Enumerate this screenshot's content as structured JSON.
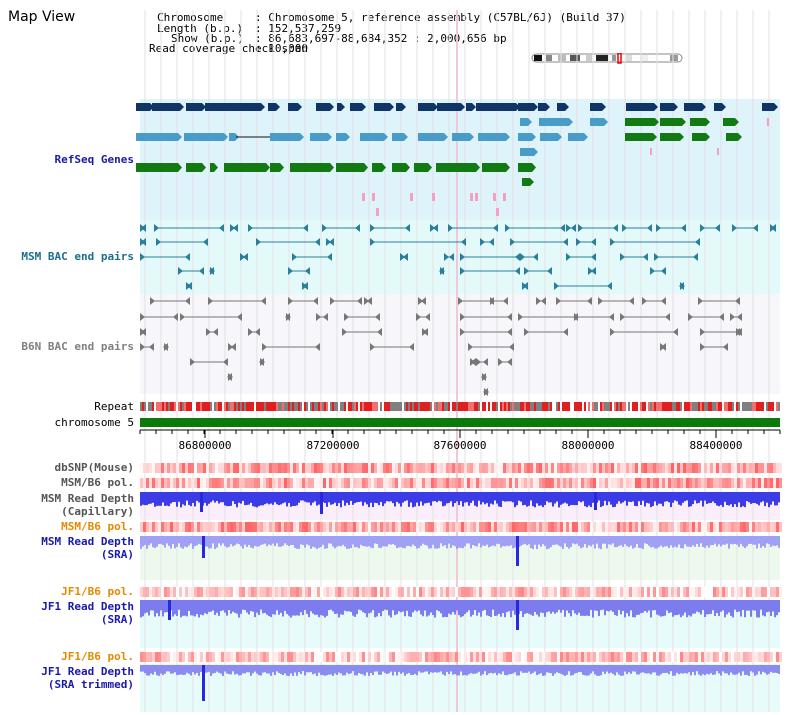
{
  "title": "Map View",
  "info": {
    "chromosome_key": "Chromosome",
    "chromosome_val": ": Chromosome 5, reference assembly (C57BL/6J) (Build 37)",
    "length_key": "Length (b.p.)",
    "length_val": ": 152,537,259",
    "show_key": "Show (b.p.)",
    "show_val": ": 86,683,697-88,684,352 : 2,000,656 bp",
    "span_key": "Read coverage check span",
    "span_val": ": 10,000"
  },
  "tracks": {
    "refseq": "RefSeq Genes",
    "msm_bac": "MSM BAC end pairs",
    "b6n_bac": "B6N BAC end pairs",
    "repeat": "Repeat",
    "chromosome": "chromosome 5",
    "dbsnp": "dbSNP(Mouse)",
    "msm_b6_pol_1": "MSM/B6 pol.",
    "msm_depth_cap_1": "MSM Read Depth",
    "msm_depth_cap_2": "(Capillary)",
    "msm_b6_pol_2": "MSM/B6 pol.",
    "msm_depth_sra_1": "MSM Read Depth",
    "msm_depth_sra_2": "(SRA)",
    "jf1_b6_pol_1": "JF1/B6 pol.",
    "jf1_depth_sra_1": "JF1 Read Depth",
    "jf1_depth_sra_2": "(SRA)",
    "jf1_b6_pol_2": "JF1/B6 pol.",
    "jf1_depth_trim_1": "JF1 Read Depth",
    "jf1_depth_trim_2": "(SRA trimmed)"
  },
  "axis": {
    "ticks": [
      "86800000",
      "87200000",
      "87600000",
      "88000000",
      "88400000"
    ]
  },
  "colors": {
    "refseq_bg": "#dff3fb",
    "msm_bg": "#e4fafa",
    "b6n_bg": "#f6f6fb",
    "gene_dark": "#0e3566",
    "gene_mid": "#4a9cc8",
    "gene_green": "#137a13",
    "pink": "#f4a0c0",
    "bac_teal": "#2a7f9a",
    "bac_gray": "#777777",
    "chrom_green": "#0b7a0b",
    "label_blue": "#1a1aaa",
    "label_teal": "#1c6f8c",
    "label_gray": "#808080",
    "label_orange": "#e38b00"
  }
}
